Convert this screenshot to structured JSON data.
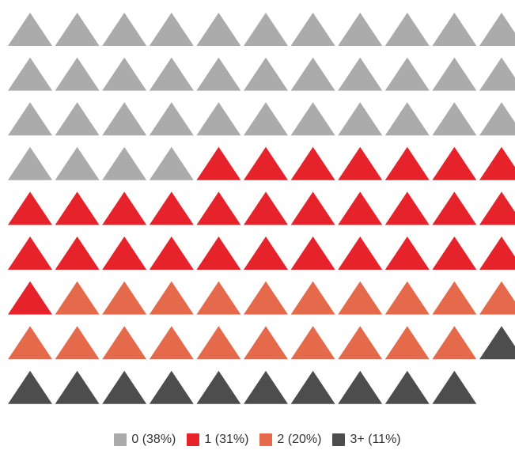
{
  "chart_data": {
    "type": "waffle",
    "marker": "triangle-up",
    "columns": 11,
    "total_icons": 98,
    "categories": [
      "0",
      "1",
      "2",
      "3+"
    ],
    "counts": [
      37,
      30,
      20,
      11
    ],
    "percent_labels": [
      "38%",
      "31%",
      "20%",
      "11%"
    ],
    "colors": [
      "#ababab",
      "#e6222b",
      "#e56a4c",
      "#4d4d4d"
    ]
  },
  "legend": [
    {
      "label": "0 (38%)",
      "color": "#ababab"
    },
    {
      "label": "1 (31%)",
      "color": "#e6222b"
    },
    {
      "label": "2 (20%)",
      "color": "#e56a4c"
    },
    {
      "label": "3+ (11%)",
      "color": "#4d4d4d"
    }
  ]
}
